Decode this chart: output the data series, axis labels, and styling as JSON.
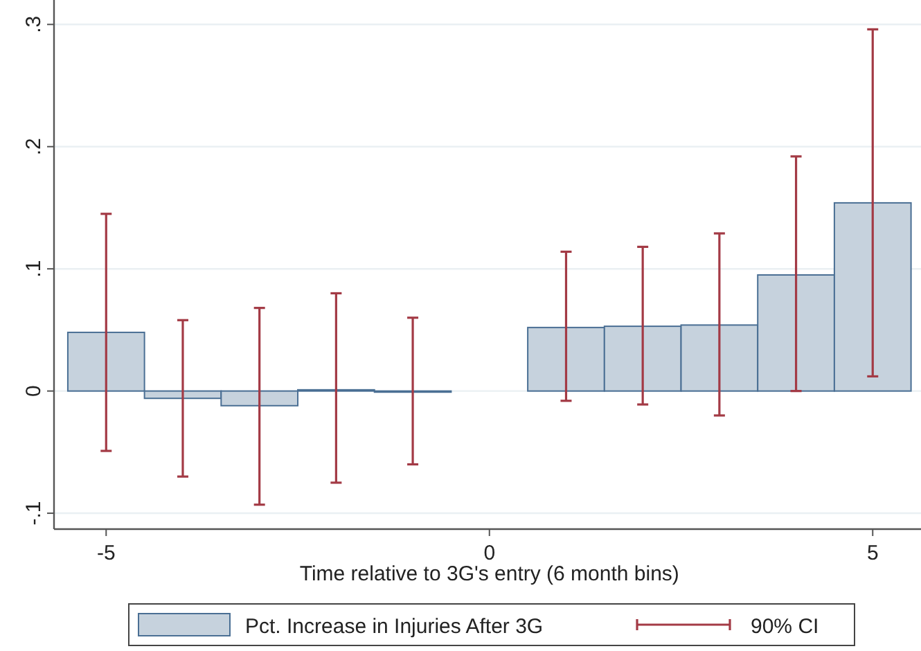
{
  "chart_data": {
    "type": "bar",
    "xlabel": "Time relative to 3G's entry (6 month bins)",
    "x": [
      -5,
      -4,
      -3,
      -2,
      -1,
      1,
      2,
      3,
      4,
      5
    ],
    "series": [
      {
        "name": "Pct. Increase in Injuries After 3G",
        "color": "#c6d2dd",
        "values": [
          0.048,
          -0.006,
          -0.012,
          0.001,
          0,
          0.052,
          0.053,
          0.054,
          0.095,
          0.154
        ],
        "errors": [
          [
            -0.049,
            0.145
          ],
          [
            -0.07,
            0.058
          ],
          [
            -0.093,
            0.068
          ],
          [
            -0.075,
            0.08
          ],
          [
            -0.06,
            0.06
          ],
          [
            -0.008,
            0.114
          ],
          [
            -0.011,
            0.118
          ],
          [
            -0.02,
            0.129
          ],
          [
            0,
            0.192
          ],
          [
            0.012,
            0.296
          ]
        ]
      }
    ],
    "xlim": [
      -5.68,
      5.63
    ],
    "ylim": [
      -0.113,
      0.32
    ],
    "xticks": [
      -5,
      0,
      5
    ],
    "yticks": [
      {
        "value": -0.1,
        "label": "-.1"
      },
      {
        "value": 0,
        "label": "0"
      },
      {
        "value": 0.1,
        "label": ".1"
      },
      {
        "value": 0.2,
        "label": ".2"
      },
      {
        "value": 0.3,
        "label": ".3"
      }
    ],
    "grid": "y",
    "legend": "bottom",
    "annotations": [
      "90% CI"
    ]
  }
}
